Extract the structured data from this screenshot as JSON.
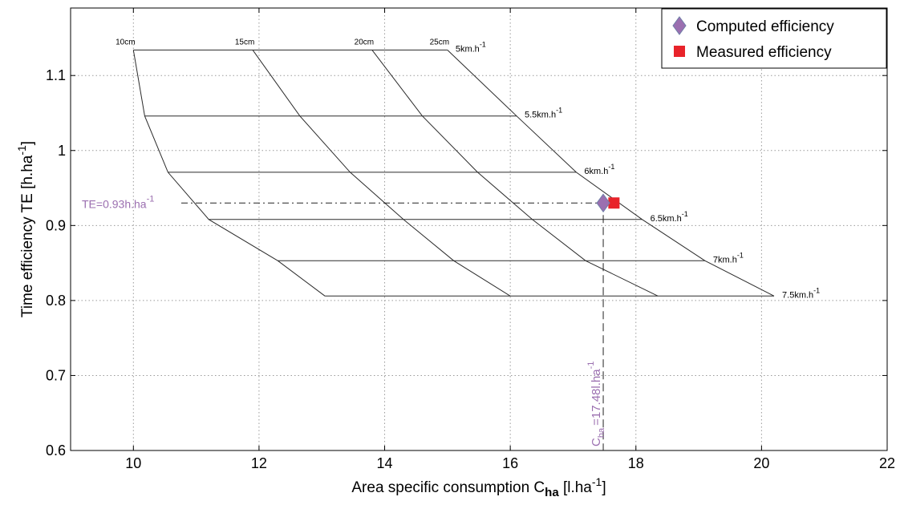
{
  "chart_data": {
    "type": "line",
    "xlabel": "Area specific consumption C",
    "xlabel_sub": "ha",
    "xlabel_unit_open": " [l.ha",
    "xlabel_unit_sup": "-1",
    "xlabel_unit_close": "]",
    "ylabel": "Time efficiency TE [h.ha",
    "ylabel_sup": "-1",
    "ylabel_close": "]",
    "xlim": [
      9,
      22
    ],
    "ylim": [
      0.6,
      1.19
    ],
    "xticks": [
      10,
      12,
      14,
      16,
      18,
      20,
      22
    ],
    "xtick_labels": [
      "10",
      "12",
      "14",
      "16",
      "18",
      "20",
      "22"
    ],
    "yticks": [
      0.6,
      0.7,
      0.8,
      0.9,
      1.0,
      1.1
    ],
    "ytick_labels": [
      "0.6",
      "0.7",
      "0.8",
      "0.9",
      "1",
      "1.1"
    ],
    "grid": true,
    "legend_position": "top-right",
    "legend": [
      {
        "label": "Computed efficiency",
        "marker": "diamond",
        "color": "#9b6fb0"
      },
      {
        "label": "Measured efficiency",
        "marker": "square",
        "color": "#e8232a"
      }
    ],
    "line_color": "#2a2a2a",
    "speed_lines": [
      {
        "base": "5km.h",
        "sup": "-1",
        "y": 1.134,
        "points": [
          [
            10.0,
            1.134
          ],
          [
            11.9,
            1.134
          ],
          [
            13.8,
            1.134
          ],
          [
            15.0,
            1.134
          ]
        ]
      },
      {
        "base": "5.5km.h",
        "sup": "-1",
        "y": 1.046,
        "points": [
          [
            10.18,
            1.046
          ],
          [
            12.65,
            1.046
          ],
          [
            14.6,
            1.046
          ],
          [
            16.1,
            1.046
          ]
        ]
      },
      {
        "base": "6km.h",
        "sup": "-1",
        "y": 0.971,
        "points": [
          [
            10.55,
            0.971
          ],
          [
            13.45,
            0.971
          ],
          [
            15.48,
            0.971
          ],
          [
            17.05,
            0.971
          ]
        ]
      },
      {
        "base": "6.5km.h",
        "sup": "-1",
        "y": 0.908,
        "points": [
          [
            11.2,
            0.908
          ],
          [
            14.3,
            0.908
          ],
          [
            16.35,
            0.908
          ],
          [
            18.1,
            0.908
          ]
        ]
      },
      {
        "base": "7km.h",
        "sup": "-1",
        "y": 0.853,
        "points": [
          [
            12.3,
            0.853
          ],
          [
            15.1,
            0.853
          ],
          [
            17.2,
            0.853
          ],
          [
            19.1,
            0.853
          ]
        ]
      },
      {
        "base": "7.5km.h",
        "sup": "-1",
        "y": 0.806,
        "points": [
          [
            13.05,
            0.806
          ],
          [
            16.0,
            0.806
          ],
          [
            18.35,
            0.806
          ],
          [
            20.2,
            0.806
          ]
        ]
      }
    ],
    "depth_lines": [
      {
        "label": "10cm",
        "points": [
          [
            10.0,
            1.134
          ],
          [
            10.18,
            1.046
          ],
          [
            10.55,
            0.971
          ],
          [
            11.2,
            0.908
          ],
          [
            12.3,
            0.853
          ],
          [
            13.05,
            0.806
          ]
        ]
      },
      {
        "label": "15cm",
        "points": [
          [
            11.9,
            1.134
          ],
          [
            12.65,
            1.046
          ],
          [
            13.45,
            0.971
          ],
          [
            14.3,
            0.908
          ],
          [
            15.1,
            0.853
          ],
          [
            16.0,
            0.806
          ]
        ]
      },
      {
        "label": "20cm",
        "points": [
          [
            13.8,
            1.134
          ],
          [
            14.6,
            1.046
          ],
          [
            15.48,
            0.971
          ],
          [
            16.35,
            0.908
          ],
          [
            17.2,
            0.853
          ],
          [
            18.35,
            0.806
          ]
        ]
      },
      {
        "label": "25cm",
        "points": [
          [
            15.0,
            1.134
          ],
          [
            16.1,
            1.046
          ],
          [
            17.05,
            0.971
          ],
          [
            18.1,
            0.908
          ],
          [
            19.1,
            0.853
          ],
          [
            20.2,
            0.806
          ]
        ]
      }
    ],
    "computed_point": {
      "x": 17.48,
      "y": 0.93
    },
    "measured_point": {
      "x": 17.65,
      "y": 0.93
    },
    "annotation_color": "#9b6fb0",
    "annotation_te": {
      "base": "TE=0.93h.ha",
      "sup": "-1"
    },
    "annotation_cha": {
      "c": "C",
      "sub": "ha",
      "value": "=17.48l.ha",
      "sup": "-1"
    }
  }
}
